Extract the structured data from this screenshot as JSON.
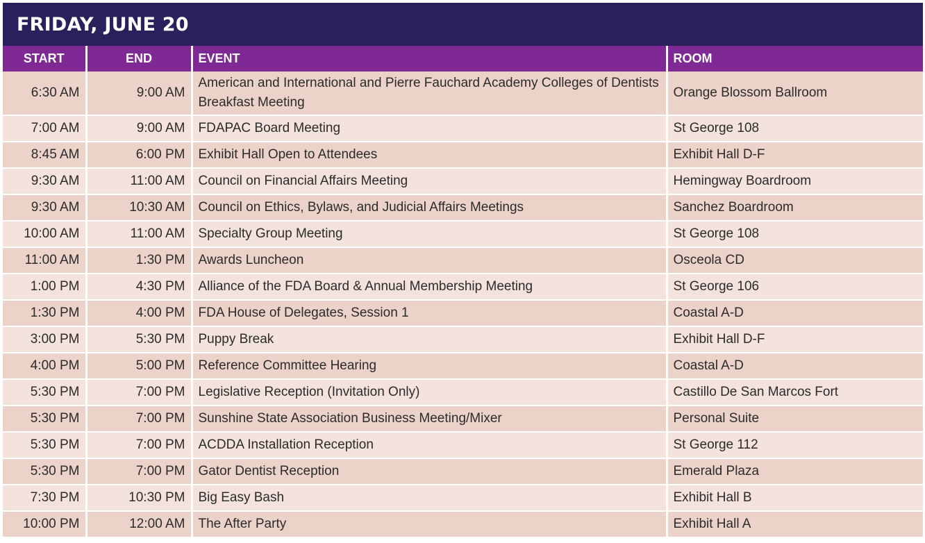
{
  "title": "FRIDAY, JUNE 20",
  "headers": {
    "start": "START",
    "end": "END",
    "event": "EVENT",
    "room": "ROOM"
  },
  "rows": [
    {
      "start": "6:30 AM",
      "end": "9:00 AM",
      "event": "American and International and Pierre Fauchard Academy Colleges of Dentists Breakfast Meeting",
      "room": "Orange Blossom Ballroom"
    },
    {
      "start": "7:00 AM",
      "end": "9:00 AM",
      "event": "FDAPAC Board Meeting",
      "room": "St George 108"
    },
    {
      "start": "8:45 AM",
      "end": "6:00 PM",
      "event": "Exhibit Hall Open to Attendees",
      "room": "Exhibit Hall D-F"
    },
    {
      "start": "9:30 AM",
      "end": "11:00 AM",
      "event": "Council on Financial Affairs Meeting",
      "room": "Hemingway Boardroom"
    },
    {
      "start": "9:30 AM",
      "end": "10:30 AM",
      "event": "Council on Ethics, Bylaws, and Judicial Affairs Meetings",
      "room": "Sanchez  Boardroom"
    },
    {
      "start": "10:00 AM",
      "end": "11:00 AM",
      "event": "Specialty Group Meeting",
      "room": "St George 108"
    },
    {
      "start": "11:00 AM",
      "end": "1:30 PM",
      "event": "Awards Luncheon",
      "room": "Osceola CD"
    },
    {
      "start": "1:00 PM",
      "end": "4:30 PM",
      "event": "Alliance of the FDA Board & Annual Membership Meeting",
      "room": "St George 106"
    },
    {
      "start": "1:30 PM",
      "end": "4:00 PM",
      "event": "FDA House of Delegates, Session 1",
      "room": "Coastal A-D"
    },
    {
      "start": "3:00 PM",
      "end": "5:30 PM",
      "event": "Puppy Break",
      "room": "Exhibit Hall D-F"
    },
    {
      "start": "4:00 PM",
      "end": "5:00 PM",
      "event": "Reference Committee Hearing",
      "room": "Coastal A-D"
    },
    {
      "start": "5:30 PM",
      "end": "7:00 PM",
      "event": "Legislative Reception (Invitation Only)",
      "room": "Castillo De San Marcos Fort"
    },
    {
      "start": "5:30 PM",
      "end": "7:00 PM",
      "event": "Sunshine State Association Business Meeting/Mixer",
      "room": "Personal Suite"
    },
    {
      "start": "5:30 PM",
      "end": "7:00 PM",
      "event": "ACDDA Installation Reception",
      "room": "St George 112"
    },
    {
      "start": "5:30 PM",
      "end": "7:00 PM",
      "event": "Gator Dentist Reception",
      "room": "Emerald Plaza"
    },
    {
      "start": "7:30 PM",
      "end": "10:30 PM",
      "event": "Big Easy Bash",
      "room": "Exhibit Hall B"
    },
    {
      "start": "10:00 PM",
      "end": "12:00 AM",
      "event": "The After Party",
      "room": "Exhibit Hall A"
    }
  ],
  "colors": {
    "title_bg": "#2b1f5c",
    "header_bg": "#7f2a94",
    "row_odd": "#ecd3c9",
    "row_even": "#f3e3dc"
  }
}
